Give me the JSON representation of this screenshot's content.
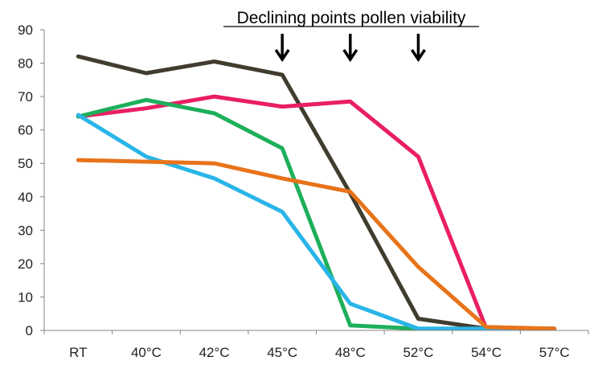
{
  "chart_data": {
    "type": "line",
    "title": "",
    "xlabel": "",
    "ylabel": "",
    "categories": [
      "RT",
      "40°C",
      "42°C",
      "45°C",
      "48°C",
      "52°C",
      "54°C",
      "57°C"
    ],
    "ylim": [
      0,
      90
    ],
    "yticks": [
      "0",
      "10",
      "20",
      "30",
      "40",
      "50",
      "60",
      "70",
      "80",
      "90"
    ],
    "grid": false,
    "legend": "none",
    "annotation": {
      "text": "Declining points pollen viability",
      "arrows_at": [
        "45°C",
        "48°C",
        "52°C"
      ]
    },
    "series": [
      {
        "color": "#403C2E",
        "values": [
          82,
          77,
          80.5,
          76.5,
          41,
          3.5,
          0.5,
          0.5
        ]
      },
      {
        "color": "#E91E63",
        "values": [
          64,
          66.5,
          70,
          67,
          68.5,
          52,
          0.5,
          0.5
        ]
      },
      {
        "color": "#1DAF5A",
        "values": [
          64,
          69,
          65,
          54.5,
          1.5,
          0.5,
          0.5,
          0.5
        ]
      },
      {
        "color": "#29B5E8",
        "values": [
          64.5,
          52,
          45.5,
          35.5,
          8,
          0.5,
          0.5,
          0.5
        ]
      },
      {
        "color": "#E8731A",
        "values": [
          51,
          50.5,
          50,
          45.5,
          41.5,
          19,
          1,
          0.5
        ]
      }
    ]
  }
}
